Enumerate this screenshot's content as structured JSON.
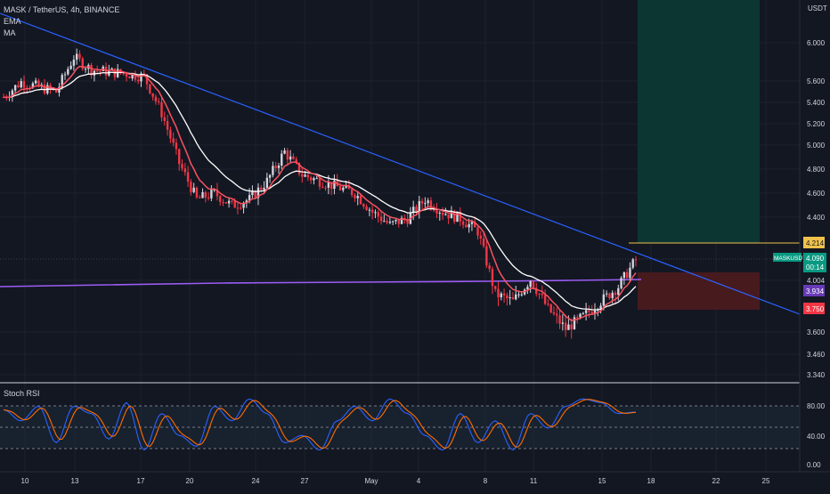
{
  "header": {
    "symbol_line": "MASK / TetherUS, 4h, BINANCE",
    "indicator_1": "EMA",
    "indicator_2": "MA"
  },
  "price_axis": {
    "currency": "USDT",
    "ticks": [
      "6.000",
      "5.600",
      "5.400",
      "5.200",
      "5.000",
      "4.800",
      "4.600",
      "4.400",
      "4.004",
      "3.600",
      "3.460",
      "3.340"
    ]
  },
  "price_labels": {
    "target": "4.214",
    "symbol_tag": "MASKUSDT",
    "last_price": "4.090",
    "countdown": "00:14",
    "ma_value": "3.934",
    "stop": "3.750"
  },
  "stoch_panel": {
    "label": "Stoch RSI",
    "ticks": [
      "80.00",
      "40.00",
      "0.00"
    ]
  },
  "time_axis": {
    "ticks": [
      "10",
      "13",
      "17",
      "20",
      "24",
      "27",
      "May",
      "4",
      "8",
      "11",
      "15",
      "18",
      "22",
      "25"
    ]
  },
  "colors": {
    "background": "#131722",
    "bull_candle": "#d1d4dc",
    "bear_candle": "#f23645",
    "ema": "#ffffff",
    "ma_pink": "#f7525f",
    "long_ma": "#9c5cf5",
    "trendline": "#2962ff",
    "target_line": "#f0c24b",
    "profit_zone": "#0b3a34",
    "loss_zone": "#4a1a1f",
    "stoch_k": "#2962ff",
    "stoch_d": "#ff6d00"
  },
  "chart_data": {
    "type": "line",
    "title": "MASK / TetherUS, 4h, BINANCE",
    "xlabel": "",
    "ylabel": "",
    "y_scale": "log",
    "ylim": [
      3.3,
      6.5
    ],
    "x_ticks": [
      "10",
      "13",
      "17",
      "20",
      "24",
      "27",
      "May",
      "4",
      "8",
      "11",
      "15",
      "18",
      "22",
      "25"
    ],
    "series": [
      {
        "name": "MASK/USDT close",
        "x": [
          "Apr 10",
          "Apr 11",
          "Apr 12",
          "Apr 13",
          "Apr 14",
          "Apr 15",
          "Apr 16",
          "Apr 17",
          "Apr 18",
          "Apr 19",
          "Apr 20",
          "Apr 21",
          "Apr 22",
          "Apr 23",
          "Apr 24",
          "Apr 25",
          "Apr 26",
          "Apr 27",
          "Apr 28",
          "Apr 29",
          "Apr 30",
          "May 1",
          "May 2",
          "May 3",
          "May 4",
          "May 5",
          "May 6",
          "May 7",
          "May 8",
          "May 9",
          "May 10",
          "May 11",
          "May 12",
          "May 13",
          "May 14",
          "May 15",
          "May 16"
        ],
        "values": [
          5.45,
          5.6,
          5.55,
          5.5,
          5.85,
          5.72,
          5.7,
          5.68,
          5.65,
          5.3,
          4.85,
          4.55,
          4.6,
          4.5,
          4.55,
          4.7,
          4.95,
          4.75,
          4.7,
          4.65,
          4.6,
          4.45,
          4.35,
          4.4,
          4.55,
          4.45,
          4.4,
          4.3,
          3.85,
          3.8,
          3.95,
          3.75,
          3.62,
          3.7,
          3.8,
          3.9,
          4.09
        ]
      }
    ],
    "stoch_rsi": {
      "ylim": [
        0,
        100
      ],
      "levels": [
        80,
        50,
        20
      ],
      "k": [
        75,
        60,
        80,
        30,
        80,
        70,
        35,
        85,
        20,
        70,
        40,
        25,
        80,
        60,
        90,
        70,
        30,
        40,
        20,
        60,
        80,
        60,
        90,
        70,
        40,
        20,
        70,
        30,
        60,
        20,
        70,
        50,
        80,
        90,
        85,
        70,
        72
      ]
    },
    "levels": {
      "take_profit": 4.214,
      "last_price": 4.09,
      "long_ma": 3.934,
      "stop_loss": 3.75
    }
  }
}
